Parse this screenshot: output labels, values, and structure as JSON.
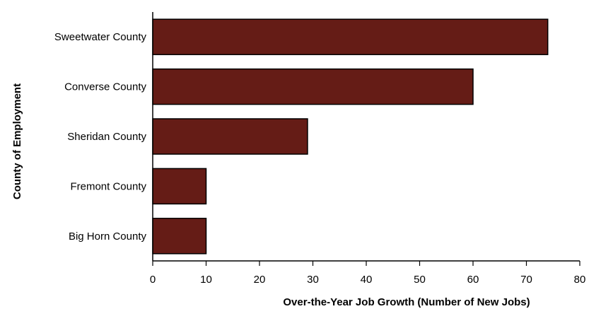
{
  "chart_data": {
    "type": "bar",
    "orientation": "horizontal",
    "title": "",
    "xlabel": "Over-the-Year Job Growth (Number of New Jobs)",
    "ylabel": "County of Employment",
    "categories": [
      "Sweetwater County",
      "Converse County",
      "Sheridan County",
      "Fremont County",
      "Big Horn County"
    ],
    "values": [
      74,
      60,
      29,
      10,
      10
    ],
    "xlim": [
      0,
      80
    ],
    "xticks": [
      0,
      10,
      20,
      30,
      40,
      50,
      60,
      70,
      80
    ],
    "grid": false,
    "legend": "none",
    "colors": {
      "bar_fill": "#651c16",
      "bar_stroke": "#000000"
    }
  }
}
